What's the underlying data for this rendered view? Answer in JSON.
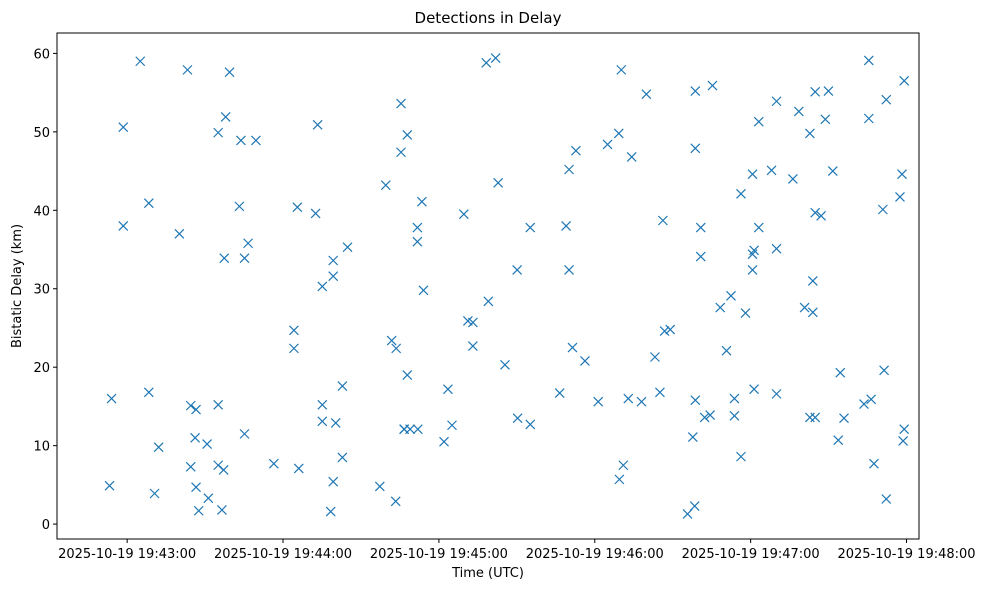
{
  "chart_data": {
    "type": "scatter",
    "title": "Detections in Delay",
    "xlabel": "Time (UTC)",
    "ylabel": "Bistatic Delay (km)",
    "marker": "x",
    "color": "#1f77b4",
    "grid": false,
    "legend": "none",
    "x_unit": "minutes after 2025-10-19 19:43:00 UTC",
    "xlim": [
      -0.45,
      5.08
    ],
    "ylim": [
      -1.9,
      62.6
    ],
    "xticks": [
      {
        "value": 0,
        "label": "2025-10-19 19:43:00"
      },
      {
        "value": 1,
        "label": "2025-10-19 19:44:00"
      },
      {
        "value": 2,
        "label": "2025-10-19 19:45:00"
      },
      {
        "value": 3,
        "label": "2025-10-19 19:46:00"
      },
      {
        "value": 4,
        "label": "2025-10-19 19:47:00"
      },
      {
        "value": 5,
        "label": "2025-10-19 19:48:00"
      }
    ],
    "yticks": [
      {
        "value": 0,
        "label": "0"
      },
      {
        "value": 10,
        "label": "10"
      },
      {
        "value": 20,
        "label": "20"
      },
      {
        "value": 30,
        "label": "30"
      },
      {
        "value": 40,
        "label": "40"
      },
      {
        "value": 50,
        "label": "50"
      },
      {
        "value": 60,
        "label": "60"
      }
    ],
    "points": [
      [
        -0.113,
        4.9
      ],
      [
        -0.1,
        16.0
      ],
      [
        -0.025,
        50.6
      ],
      [
        -0.025,
        38.0
      ],
      [
        0.084,
        59.0
      ],
      [
        0.139,
        40.9
      ],
      [
        0.139,
        16.8
      ],
      [
        0.176,
        3.9
      ],
      [
        0.202,
        9.8
      ],
      [
        0.335,
        37.0
      ],
      [
        0.387,
        57.9
      ],
      [
        0.408,
        15.1
      ],
      [
        0.408,
        7.3
      ],
      [
        0.436,
        11.0
      ],
      [
        0.442,
        14.6
      ],
      [
        0.442,
        4.7
      ],
      [
        0.459,
        1.7
      ],
      [
        0.513,
        10.2
      ],
      [
        0.521,
        3.3
      ],
      [
        0.584,
        15.2
      ],
      [
        0.584,
        7.5
      ],
      [
        0.584,
        49.9
      ],
      [
        0.608,
        1.8
      ],
      [
        0.619,
        6.9
      ],
      [
        0.623,
        33.9
      ],
      [
        0.632,
        51.9
      ],
      [
        0.657,
        57.6
      ],
      [
        0.72,
        40.5
      ],
      [
        0.73,
        48.9
      ],
      [
        0.753,
        33.9
      ],
      [
        0.753,
        11.5
      ],
      [
        0.776,
        35.8
      ],
      [
        0.826,
        48.9
      ],
      [
        0.941,
        7.7
      ],
      [
        1.07,
        24.7
      ],
      [
        1.07,
        22.4
      ],
      [
        1.092,
        40.4
      ],
      [
        1.101,
        7.1
      ],
      [
        1.209,
        39.6
      ],
      [
        1.222,
        50.9
      ],
      [
        1.252,
        15.2
      ],
      [
        1.252,
        30.3
      ],
      [
        1.252,
        13.1
      ],
      [
        1.306,
        1.6
      ],
      [
        1.322,
        31.6
      ],
      [
        1.322,
        33.6
      ],
      [
        1.322,
        5.4
      ],
      [
        1.338,
        12.9
      ],
      [
        1.381,
        8.5
      ],
      [
        1.381,
        17.6
      ],
      [
        1.414,
        35.3
      ],
      [
        1.621,
        4.8
      ],
      [
        1.659,
        43.2
      ],
      [
        1.697,
        23.4
      ],
      [
        1.723,
        2.9
      ],
      [
        1.726,
        22.4
      ],
      [
        1.757,
        47.4
      ],
      [
        1.757,
        53.6
      ],
      [
        1.777,
        12.1
      ],
      [
        1.777,
        12.1
      ],
      [
        1.797,
        49.6
      ],
      [
        1.797,
        19.0
      ],
      [
        1.815,
        12.1
      ],
      [
        1.862,
        37.8
      ],
      [
        1.862,
        36.0
      ],
      [
        1.865,
        12.1
      ],
      [
        1.891,
        41.1
      ],
      [
        1.901,
        29.8
      ],
      [
        2.033,
        10.5
      ],
      [
        2.058,
        17.2
      ],
      [
        2.084,
        12.6
      ],
      [
        2.16,
        39.5
      ],
      [
        2.186,
        25.9
      ],
      [
        2.218,
        25.7
      ],
      [
        2.218,
        22.7
      ],
      [
        2.304,
        58.8
      ],
      [
        2.317,
        28.4
      ],
      [
        2.364,
        59.4
      ],
      [
        2.38,
        43.5
      ],
      [
        2.424,
        20.3
      ],
      [
        2.502,
        32.4
      ],
      [
        2.505,
        13.5
      ],
      [
        2.586,
        12.7
      ],
      [
        2.586,
        37.8
      ],
      [
        2.775,
        16.7
      ],
      [
        2.816,
        38.0
      ],
      [
        2.835,
        45.2
      ],
      [
        2.835,
        32.4
      ],
      [
        2.857,
        22.5
      ],
      [
        2.879,
        47.6
      ],
      [
        2.937,
        20.8
      ],
      [
        3.022,
        15.6
      ],
      [
        3.082,
        48.4
      ],
      [
        3.154,
        49.8
      ],
      [
        3.158,
        5.7
      ],
      [
        3.17,
        57.9
      ],
      [
        3.183,
        7.5
      ],
      [
        3.215,
        16.0
      ],
      [
        3.237,
        46.8
      ],
      [
        3.3,
        15.6
      ],
      [
        3.331,
        54.8
      ],
      [
        3.386,
        21.3
      ],
      [
        3.418,
        16.8
      ],
      [
        3.437,
        38.7
      ],
      [
        3.448,
        24.6
      ],
      [
        3.484,
        24.8
      ],
      [
        3.595,
        1.3
      ],
      [
        3.629,
        11.1
      ],
      [
        3.641,
        2.3
      ],
      [
        3.645,
        55.2
      ],
      [
        3.645,
        47.9
      ],
      [
        3.645,
        15.8
      ],
      [
        3.68,
        37.8
      ],
      [
        3.68,
        34.1
      ],
      [
        3.705,
        13.6
      ],
      [
        3.74,
        13.9
      ],
      [
        3.755,
        55.9
      ],
      [
        3.805,
        27.6
      ],
      [
        3.845,
        22.1
      ],
      [
        3.874,
        29.1
      ],
      [
        3.896,
        13.8
      ],
      [
        3.896,
        16.0
      ],
      [
        3.938,
        8.6
      ],
      [
        3.938,
        42.1
      ],
      [
        3.967,
        26.9
      ],
      [
        4.012,
        32.4
      ],
      [
        4.012,
        34.4
      ],
      [
        4.012,
        44.6
      ],
      [
        4.022,
        17.2
      ],
      [
        4.022,
        34.9
      ],
      [
        4.052,
        51.3
      ],
      [
        4.052,
        37.8
      ],
      [
        4.134,
        45.1
      ],
      [
        4.166,
        35.1
      ],
      [
        4.166,
        53.9
      ],
      [
        4.166,
        16.6
      ],
      [
        4.271,
        44.0
      ],
      [
        4.309,
        52.6
      ],
      [
        4.346,
        27.6
      ],
      [
        4.38,
        13.6
      ],
      [
        4.38,
        49.8
      ],
      [
        4.399,
        31.0
      ],
      [
        4.399,
        27.0
      ],
      [
        4.414,
        55.1
      ],
      [
        4.414,
        39.7
      ],
      [
        4.414,
        13.6
      ],
      [
        4.452,
        39.3
      ],
      [
        4.479,
        51.6
      ],
      [
        4.499,
        55.2
      ],
      [
        4.527,
        45.0
      ],
      [
        4.562,
        10.7
      ],
      [
        4.575,
        19.3
      ],
      [
        4.599,
        13.5
      ],
      [
        4.727,
        15.3
      ],
      [
        4.758,
        59.1
      ],
      [
        4.758,
        51.7
      ],
      [
        4.773,
        15.9
      ],
      [
        4.791,
        7.7
      ],
      [
        4.848,
        40.1
      ],
      [
        4.856,
        19.6
      ],
      [
        4.87,
        3.2
      ],
      [
        4.87,
        54.1
      ],
      [
        4.958,
        41.7
      ],
      [
        4.971,
        44.6
      ],
      [
        4.978,
        10.6
      ],
      [
        4.985,
        12.1
      ],
      [
        4.985,
        56.5
      ]
    ]
  }
}
